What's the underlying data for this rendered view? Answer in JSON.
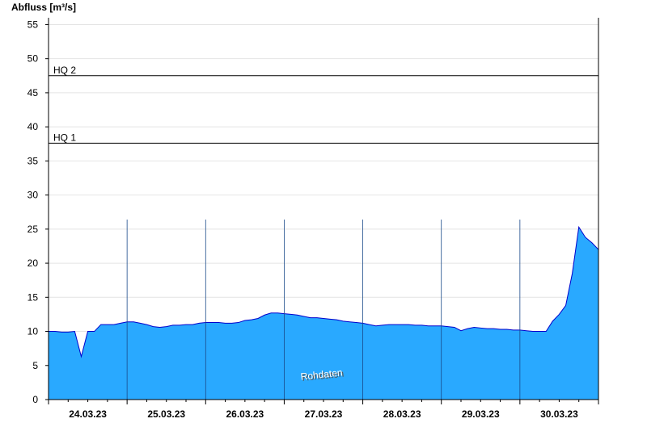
{
  "chart_data": {
    "type": "area",
    "y_label": "Abfluss [m³/s]",
    "watermark": "Rohdaten",
    "categories": [
      null,
      null,
      null,
      null,
      null,
      null,
      "24.03.23",
      null,
      null,
      null,
      null,
      null,
      null,
      null,
      null,
      null,
      null,
      null,
      "25.03.23",
      null,
      null,
      null,
      null,
      null,
      null,
      null,
      null,
      null,
      null,
      null,
      "26.03.23",
      null,
      null,
      null,
      null,
      null,
      null,
      null,
      null,
      null,
      null,
      null,
      "27.03.23",
      null,
      null,
      null,
      null,
      null,
      null,
      null,
      null,
      null,
      null,
      null,
      "28.03.23",
      null,
      null,
      null,
      null,
      null,
      null,
      null,
      null,
      null,
      null,
      null,
      "29.03.23",
      null,
      null,
      null,
      null,
      null,
      null,
      null,
      null,
      null,
      null,
      null,
      "30.03.23",
      null,
      null,
      null,
      null,
      null,
      null
    ],
    "series": [
      {
        "color": "#29a9ff",
        "line_color": "#0000cc",
        "values": [
          10.0,
          10.0,
          9.9,
          9.9,
          10.0,
          6.3,
          10.0,
          10.0,
          11.0,
          11.0,
          11.0,
          11.2,
          11.4,
          11.4,
          11.2,
          11.0,
          10.7,
          10.6,
          10.7,
          10.9,
          10.9,
          11.0,
          11.0,
          11.2,
          11.3,
          11.3,
          11.3,
          11.2,
          11.2,
          11.3,
          11.6,
          11.7,
          11.9,
          12.4,
          12.7,
          12.7,
          12.6,
          12.5,
          12.4,
          12.2,
          12.0,
          12.0,
          11.9,
          11.8,
          11.7,
          11.5,
          11.4,
          11.3,
          11.2,
          11.0,
          10.8,
          10.9,
          11.0,
          11.0,
          11.0,
          11.0,
          10.9,
          10.9,
          10.8,
          10.8,
          10.8,
          10.7,
          10.6,
          10.1,
          10.4,
          10.6,
          10.5,
          10.4,
          10.4,
          10.3,
          10.3,
          10.2,
          10.2,
          10.1,
          10.0,
          10.0,
          10.0,
          11.5,
          12.5,
          13.8,
          18.5,
          25.3,
          23.8,
          23.0,
          22.0
        ]
      }
    ],
    "thresholds": [
      {
        "label": "HQ 1",
        "value": 37.6
      },
      {
        "label": "HQ 2",
        "value": 47.5
      }
    ],
    "ylim": [
      0,
      56
    ],
    "yticks": [
      0,
      5,
      10,
      15,
      20,
      25,
      30,
      35,
      40,
      45,
      50,
      55
    ],
    "grid": true
  }
}
